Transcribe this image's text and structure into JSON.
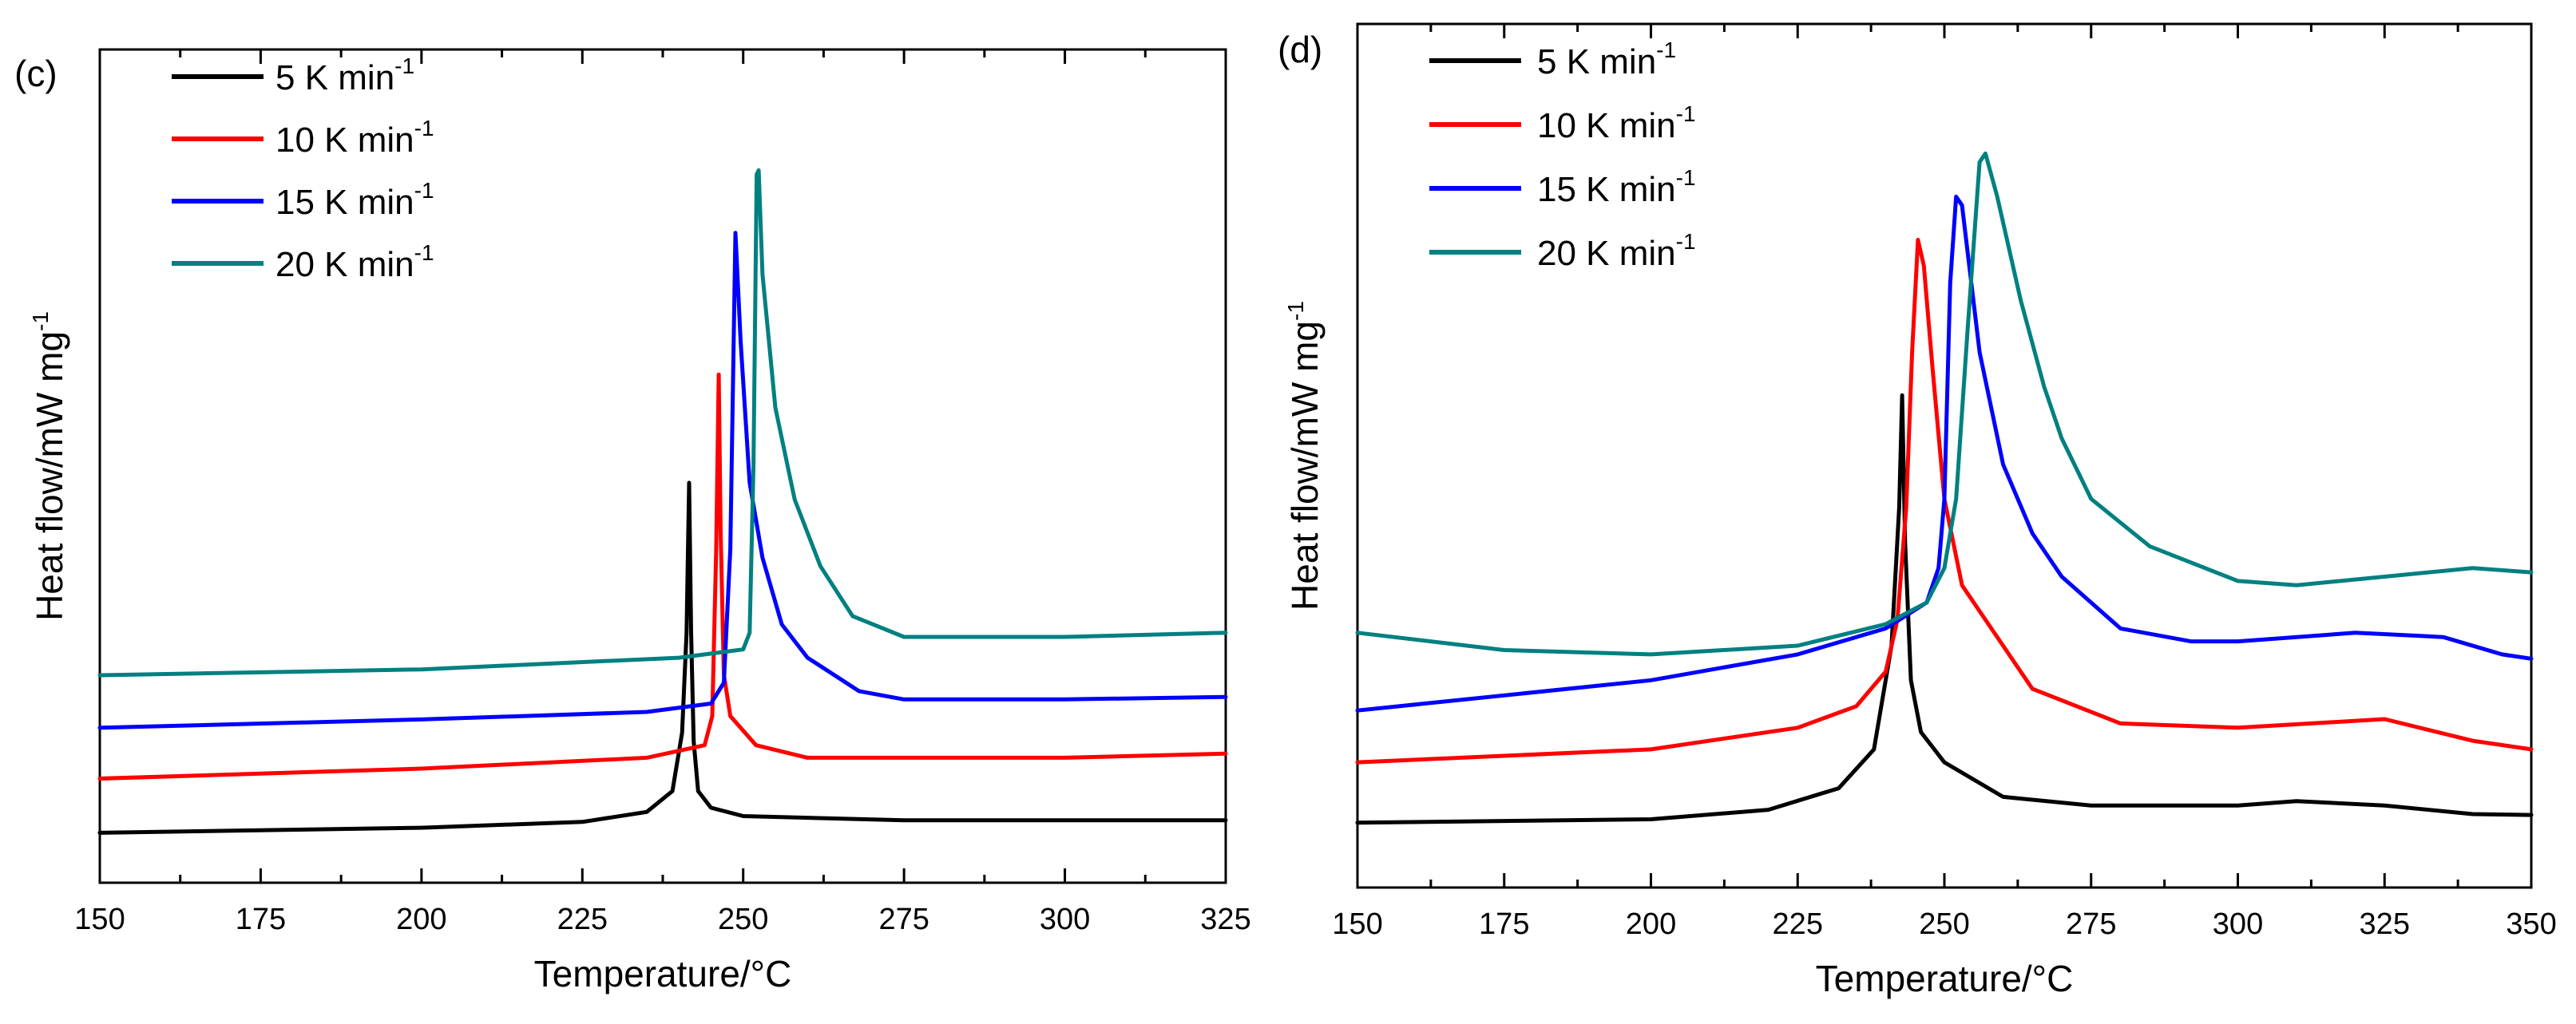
{
  "chart_data": [
    {
      "panel": "(c)",
      "type": "line",
      "title": "",
      "xlabel": "Temperature/°C",
      "ylabel": "Heat flow/mW mg",
      "ylabel_sup": "-1",
      "xlim": [
        150,
        325
      ],
      "ylim": [
        0,
        100
      ],
      "xticks": [
        150,
        175,
        200,
        225,
        250,
        275,
        300,
        325
      ],
      "yticks_shown": false,
      "legend_position": "top-left",
      "series": [
        {
          "name": "5 K min",
          "sup": "-1",
          "color": "#000000",
          "points": [
            [
              150,
              6
            ],
            [
              200,
              6.6
            ],
            [
              225,
              7.3
            ],
            [
              235,
              8.5
            ],
            [
              239,
              11
            ],
            [
              240.5,
              18
            ],
            [
              241.2,
              30
            ],
            [
              241.6,
              48
            ],
            [
              241.9,
              30
            ],
            [
              242.3,
              17
            ],
            [
              243,
              11
            ],
            [
              245,
              9
            ],
            [
              250,
              8
            ],
            [
              275,
              7.5
            ],
            [
              300,
              7.5
            ],
            [
              325,
              7.5
            ]
          ]
        },
        {
          "name": "10 K min",
          "sup": "-1",
          "color": "#ff0000",
          "points": [
            [
              150,
              12.5
            ],
            [
              200,
              13.7
            ],
            [
              235,
              15
            ],
            [
              244,
              16.5
            ],
            [
              245.2,
              20
            ],
            [
              245.8,
              40
            ],
            [
              246.2,
              61
            ],
            [
              246.5,
              42
            ],
            [
              247,
              25
            ],
            [
              248,
              20
            ],
            [
              252,
              16.5
            ],
            [
              260,
              15
            ],
            [
              300,
              15
            ],
            [
              325,
              15.5
            ]
          ]
        },
        {
          "name": "15 K min",
          "sup": "-1",
          "color": "#0000ff",
          "points": [
            [
              150,
              18.6
            ],
            [
              200,
              19.6
            ],
            [
              235,
              20.5
            ],
            [
              245,
              21.5
            ],
            [
              247,
              24
            ],
            [
              248,
              40
            ],
            [
              248.8,
              78
            ],
            [
              249.6,
              65
            ],
            [
              251,
              48
            ],
            [
              253,
              39
            ],
            [
              256,
              31
            ],
            [
              260,
              27
            ],
            [
              268,
              23
            ],
            [
              275,
              22
            ],
            [
              300,
              22
            ],
            [
              325,
              22.3
            ]
          ]
        },
        {
          "name": "20 K min",
          "sup": "-1",
          "color": "#008080",
          "points": [
            [
              150,
              24.9
            ],
            [
              200,
              25.6
            ],
            [
              240,
              27
            ],
            [
              250,
              28
            ],
            [
              251,
              30
            ],
            [
              251.6,
              50
            ],
            [
              252.1,
              85
            ],
            [
              252.4,
              85.5
            ],
            [
              253,
              73
            ],
            [
              255,
              57
            ],
            [
              258,
              46
            ],
            [
              262,
              38
            ],
            [
              267,
              32
            ],
            [
              275,
              29.5
            ],
            [
              300,
              29.5
            ],
            [
              325,
              30
            ]
          ]
        }
      ]
    },
    {
      "panel": "(d)",
      "type": "line",
      "title": "",
      "xlabel": "Temperature/°C",
      "ylabel": "Heat flow/mW mg",
      "ylabel_sup": "-1",
      "xlim": [
        150,
        350
      ],
      "ylim": [
        0,
        100
      ],
      "xticks": [
        150,
        175,
        200,
        225,
        250,
        275,
        300,
        325,
        350
      ],
      "yticks_shown": false,
      "legend_position": "top-left",
      "series": [
        {
          "name": "5 K min",
          "sup": "-1",
          "color": "#000000",
          "points": [
            [
              150,
              7.5
            ],
            [
              200,
              7.9
            ],
            [
              220,
              9
            ],
            [
              232,
              11.5
            ],
            [
              238,
              16
            ],
            [
              241,
              28
            ],
            [
              242.3,
              44
            ],
            [
              242.8,
              57
            ],
            [
              243.3,
              40
            ],
            [
              244.3,
              24
            ],
            [
              246,
              18
            ],
            [
              250,
              14.5
            ],
            [
              260,
              10.5
            ],
            [
              275,
              9.5
            ],
            [
              300,
              9.5
            ],
            [
              310,
              10
            ],
            [
              325,
              9.5
            ],
            [
              340,
              8.5
            ],
            [
              350,
              8.4
            ]
          ]
        },
        {
          "name": "10 K min",
          "sup": "-1",
          "color": "#ff0000",
          "points": [
            [
              150,
              14.5
            ],
            [
              200,
              16
            ],
            [
              225,
              18.5
            ],
            [
              235,
              21
            ],
            [
              240,
              25
            ],
            [
              242,
              31
            ],
            [
              243.5,
              44
            ],
            [
              244.5,
              62
            ],
            [
              245.5,
              75
            ],
            [
              246.5,
              72
            ],
            [
              248,
              60
            ],
            [
              250,
              45
            ],
            [
              253,
              35
            ],
            [
              258,
              30
            ],
            [
              265,
              23
            ],
            [
              280,
              19
            ],
            [
              300,
              18.5
            ],
            [
              325,
              19.5
            ],
            [
              340,
              17
            ],
            [
              350,
              16
            ]
          ]
        },
        {
          "name": "15 K min",
          "sup": "-1",
          "color": "#0000ff",
          "points": [
            [
              150,
              20.5
            ],
            [
              200,
              24
            ],
            [
              225,
              27
            ],
            [
              240,
              30
            ],
            [
              247,
              33
            ],
            [
              249,
              37
            ],
            [
              250,
              45
            ],
            [
              251,
              70
            ],
            [
              252,
              80
            ],
            [
              253,
              79
            ],
            [
              256,
              62
            ],
            [
              260,
              49
            ],
            [
              265,
              41
            ],
            [
              270,
              36
            ],
            [
              280,
              30
            ],
            [
              292,
              28.5
            ],
            [
              300,
              28.5
            ],
            [
              320,
              29.5
            ],
            [
              335,
              29
            ],
            [
              345,
              27
            ],
            [
              350,
              26.5
            ]
          ]
        },
        {
          "name": "20 K min",
          "sup": "-1",
          "color": "#008080",
          "points": [
            [
              150,
              29.5
            ],
            [
              175,
              27.5
            ],
            [
              200,
              27
            ],
            [
              225,
              28
            ],
            [
              240,
              30.5
            ],
            [
              247,
              33
            ],
            [
              250,
              37
            ],
            [
              252,
              45
            ],
            [
              254,
              65
            ],
            [
              256,
              84
            ],
            [
              257,
              85
            ],
            [
              259,
              80
            ],
            [
              263,
              68
            ],
            [
              267,
              58
            ],
            [
              270,
              52
            ],
            [
              275,
              45
            ],
            [
              285,
              39.5
            ],
            [
              300,
              35.5
            ],
            [
              310,
              35
            ],
            [
              325,
              36
            ],
            [
              340,
              37
            ],
            [
              350,
              36.5
            ]
          ]
        }
      ]
    }
  ]
}
